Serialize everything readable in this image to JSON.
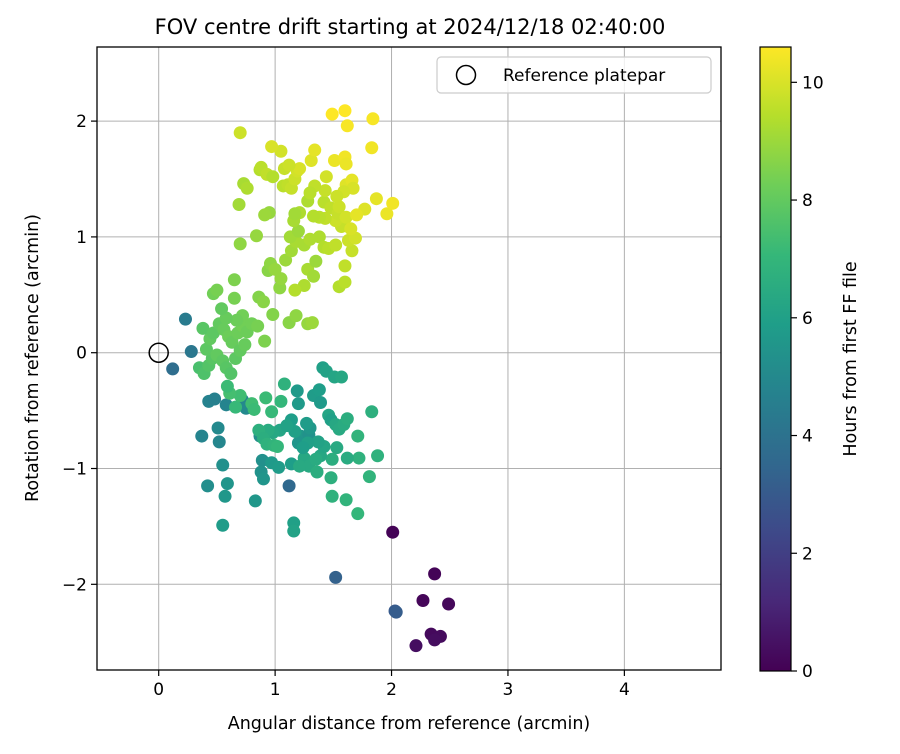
{
  "chart_data": {
    "type": "scatter",
    "title": "FOV centre drift starting at 2024/12/18 02:40:00",
    "xlabel": "Angular distance from reference (arcmin)",
    "ylabel": "Rotation from reference (arcmin)",
    "xlim": [
      -0.53,
      4.83
    ],
    "ylim": [
      -2.74,
      2.64
    ],
    "xticks": [
      0,
      1,
      2,
      3,
      4
    ],
    "yticks": [
      -2,
      -1,
      0,
      1,
      2
    ],
    "xtick_labels": [
      "0",
      "1",
      "2",
      "3",
      "4"
    ],
    "ytick_labels": [
      "−2",
      "−1",
      "0",
      "1",
      "2"
    ],
    "grid": true,
    "legend_placement": "top-right",
    "legend": [
      {
        "label": "Reference platepar",
        "marker": "open-circle"
      }
    ],
    "reference_point": {
      "x": 0,
      "y": 0,
      "label": "Reference platepar"
    },
    "colorbar": {
      "label": "Hours from first FF file",
      "range": [
        0,
        10.6
      ],
      "ticks": [
        0,
        2,
        4,
        6,
        8,
        10
      ],
      "tick_labels": [
        "0",
        "2",
        "4",
        "6",
        "8",
        "10"
      ],
      "colormap": "viridis"
    },
    "colormap_stops": [
      "#440154",
      "#482878",
      "#3e4989",
      "#31688e",
      "#26828e",
      "#1f9e89",
      "#35b779",
      "#6ece58",
      "#b5de2b",
      "#fde725"
    ],
    "series": [
      {
        "points": [
          [
            2.01,
            -1.55,
            0.05
          ],
          [
            2.37,
            -1.91,
            0.1
          ],
          [
            2.27,
            -2.14,
            0.15
          ],
          [
            2.49,
            -2.17,
            0.2
          ],
          [
            2.34,
            -2.43,
            0.25
          ],
          [
            2.42,
            -2.45,
            0.3
          ],
          [
            2.37,
            -2.48,
            0.35
          ],
          [
            2.21,
            -2.53,
            0.4
          ],
          [
            1.52,
            -1.94,
            3.3
          ],
          [
            2.03,
            -2.23,
            3.0
          ],
          [
            2.04,
            -2.24,
            3.1
          ],
          [
            1.12,
            -1.15,
            3.6
          ],
          [
            0.12,
            -0.14,
            3.8
          ],
          [
            0.23,
            0.29,
            4.4
          ],
          [
            0.28,
            0.01,
            4.2
          ],
          [
            0.37,
            -0.72,
            4.8
          ],
          [
            0.52,
            -0.77,
            4.9
          ],
          [
            0.51,
            -0.65,
            5.0
          ],
          [
            0.42,
            -1.15,
            5.2
          ],
          [
            0.55,
            -0.97,
            5.3
          ],
          [
            0.59,
            -1.13,
            5.5
          ],
          [
            0.57,
            -1.24,
            5.6
          ],
          [
            0.55,
            -1.49,
            5.8
          ],
          [
            0.43,
            -0.42,
            4.7
          ],
          [
            0.48,
            -0.4,
            4.6
          ],
          [
            0.58,
            -0.45,
            4.8
          ],
          [
            0.72,
            -0.41,
            4.9
          ],
          [
            0.75,
            -0.48,
            5.0
          ],
          [
            0.87,
            -0.72,
            5.2
          ],
          [
            0.89,
            -0.93,
            5.3
          ],
          [
            0.88,
            -1.03,
            5.4
          ],
          [
            0.9,
            -1.09,
            5.5
          ],
          [
            0.83,
            -1.28,
            5.6
          ],
          [
            0.97,
            -0.95,
            5.7
          ],
          [
            1.03,
            -0.99,
            5.8
          ],
          [
            1.14,
            -0.96,
            5.9
          ],
          [
            1.16,
            -1.47,
            6.0
          ],
          [
            1.16,
            -1.54,
            6.1
          ],
          [
            1.14,
            -0.58,
            5.9
          ],
          [
            1.2,
            -0.44,
            5.7
          ],
          [
            1.22,
            -0.72,
            5.6
          ],
          [
            1.2,
            -0.78,
            5.5
          ],
          [
            1.29,
            -0.71,
            5.4
          ],
          [
            1.3,
            -0.65,
            5.6
          ],
          [
            1.33,
            -0.37,
            5.8
          ],
          [
            1.38,
            -0.32,
            5.9
          ],
          [
            1.39,
            -0.43,
            5.7
          ],
          [
            1.41,
            -0.13,
            6.0
          ],
          [
            1.44,
            -0.16,
            6.1
          ],
          [
            1.51,
            -0.21,
            6.2
          ],
          [
            1.57,
            -0.21,
            6.3
          ],
          [
            1.46,
            -0.54,
            6.2
          ],
          [
            1.48,
            -0.58,
            6.0
          ],
          [
            1.52,
            -0.62,
            6.3
          ],
          [
            1.55,
            -0.66,
            6.4
          ],
          [
            1.59,
            -0.62,
            6.5
          ],
          [
            1.62,
            -0.57,
            6.6
          ],
          [
            1.53,
            -0.82,
            6.4
          ],
          [
            1.49,
            -0.92,
            6.6
          ],
          [
            1.48,
            -1.08,
            6.7
          ],
          [
            1.49,
            -1.24,
            6.8
          ],
          [
            1.61,
            -1.27,
            6.9
          ],
          [
            1.71,
            -1.39,
            7.0
          ],
          [
            1.72,
            -0.91,
            6.8
          ],
          [
            1.71,
            -0.72,
            6.9
          ],
          [
            1.83,
            -0.51,
            6.7
          ],
          [
            1.88,
            -0.89,
            6.8
          ],
          [
            1.81,
            -1.07,
            6.9
          ],
          [
            1.39,
            -0.89,
            6.3
          ],
          [
            1.42,
            -0.81,
            6.2
          ],
          [
            1.37,
            -0.77,
            6.1
          ],
          [
            1.28,
            -0.78,
            6.0
          ],
          [
            1.25,
            -0.91,
            6.3
          ],
          [
            1.29,
            -0.98,
            6.4
          ],
          [
            1.35,
            -0.92,
            6.5
          ],
          [
            1.36,
            -1.03,
            6.6
          ],
          [
            1.21,
            -0.98,
            6.4
          ],
          [
            1.04,
            -0.67,
            6.2
          ],
          [
            0.98,
            -0.69,
            6.3
          ],
          [
            0.94,
            -0.67,
            6.5
          ],
          [
            0.86,
            -0.67,
            6.7
          ],
          [
            0.9,
            -0.74,
            6.6
          ],
          [
            0.93,
            -0.79,
            6.8
          ],
          [
            0.99,
            -0.8,
            6.9
          ],
          [
            1.02,
            -0.81,
            7.0
          ],
          [
            0.97,
            -0.51,
            7.1
          ],
          [
            0.92,
            -0.39,
            7.2
          ],
          [
            1.05,
            -0.42,
            7.0
          ],
          [
            1.08,
            -0.27,
            6.8
          ],
          [
            0.8,
            -0.44,
            7.3
          ],
          [
            0.66,
            -0.47,
            7.1
          ],
          [
            0.82,
            -0.49,
            7.2
          ],
          [
            0.7,
            -0.37,
            7.3
          ],
          [
            0.61,
            -0.35,
            7.4
          ],
          [
            0.59,
            -0.29,
            7.2
          ],
          [
            1.17,
            -0.68,
            6.0
          ],
          [
            1.24,
            -0.82,
            5.9
          ],
          [
            1.27,
            -0.61,
            5.8
          ],
          [
            1.1,
            -0.63,
            6.1
          ],
          [
            1.19,
            -0.33,
            5.7
          ],
          [
            1.62,
            -0.91,
            6.5
          ],
          [
            0.35,
            -0.13,
            7.5
          ],
          [
            0.39,
            -0.18,
            7.6
          ],
          [
            0.43,
            -0.11,
            7.7
          ],
          [
            0.46,
            -0.05,
            7.8
          ],
          [
            0.41,
            0.03,
            7.9
          ],
          [
            0.44,
            0.12,
            8.0
          ],
          [
            0.38,
            0.21,
            7.8
          ],
          [
            0.47,
            0.17,
            7.9
          ],
          [
            0.52,
            0.25,
            8.0
          ],
          [
            0.56,
            0.2,
            8.1
          ],
          [
            0.6,
            0.14,
            8.2
          ],
          [
            0.63,
            0.09,
            8.1
          ],
          [
            0.5,
            -0.02,
            8.0
          ],
          [
            0.55,
            -0.07,
            7.9
          ],
          [
            0.58,
            -0.13,
            7.8
          ],
          [
            0.62,
            -0.18,
            7.7
          ],
          [
            0.66,
            -0.05,
            7.9
          ],
          [
            0.7,
            0.02,
            8.0
          ],
          [
            0.74,
            0.07,
            8.1
          ],
          [
            0.68,
            0.17,
            8.2
          ],
          [
            0.72,
            0.23,
            8.3
          ],
          [
            0.76,
            0.18,
            8.2
          ],
          [
            0.8,
            0.25,
            8.3
          ],
          [
            0.85,
            0.23,
            8.4
          ],
          [
            0.72,
            0.32,
            8.3
          ],
          [
            0.67,
            0.28,
            8.2
          ],
          [
            0.58,
            0.3,
            8.1
          ],
          [
            0.54,
            0.38,
            8.0
          ],
          [
            0.47,
            0.51,
            8.3
          ],
          [
            0.5,
            0.54,
            8.4
          ],
          [
            0.65,
            0.63,
            8.5
          ],
          [
            0.65,
            0.47,
            8.4
          ],
          [
            0.86,
            0.48,
            8.6
          ],
          [
            0.9,
            0.44,
            8.7
          ],
          [
            0.91,
            0.1,
            8.5
          ],
          [
            0.98,
            0.33,
            8.6
          ],
          [
            1.04,
            0.56,
            8.8
          ],
          [
            1.12,
            0.26,
            8.7
          ],
          [
            1.18,
            0.32,
            8.8
          ],
          [
            1.28,
            0.25,
            8.9
          ],
          [
            1.32,
            0.26,
            9.0
          ],
          [
            0.94,
            0.71,
            8.7
          ],
          [
            0.96,
            0.77,
            8.8
          ],
          [
            1.0,
            0.72,
            8.9
          ],
          [
            1.05,
            0.64,
            8.9
          ],
          [
            1.09,
            0.8,
            9.0
          ],
          [
            1.14,
            0.88,
            9.1
          ],
          [
            1.18,
            0.96,
            9.2
          ],
          [
            1.13,
            1.0,
            9.1
          ],
          [
            1.2,
            1.05,
            9.0
          ],
          [
            1.25,
            0.93,
            9.2
          ],
          [
            1.3,
            0.98,
            9.3
          ],
          [
            1.28,
            0.72,
            9.2
          ],
          [
            1.33,
            0.66,
            9.1
          ],
          [
            1.35,
            0.79,
            9.0
          ],
          [
            1.25,
            0.58,
            9.3
          ],
          [
            1.17,
            0.54,
            9.4
          ],
          [
            1.38,
            1.0,
            9.3
          ],
          [
            1.42,
            0.91,
            9.4
          ],
          [
            1.46,
            0.9,
            9.5
          ],
          [
            1.52,
            0.93,
            9.6
          ],
          [
            1.55,
            0.57,
            9.4
          ],
          [
            1.6,
            0.61,
            9.5
          ],
          [
            1.6,
            0.75,
            9.6
          ],
          [
            1.66,
            0.88,
            9.7
          ],
          [
            1.63,
            0.97,
            9.8
          ],
          [
            1.69,
            0.99,
            9.9
          ],
          [
            1.57,
            1.09,
            9.7
          ],
          [
            1.52,
            1.14,
            9.8
          ],
          [
            1.43,
            1.16,
            9.6
          ],
          [
            1.38,
            1.17,
            9.5
          ],
          [
            1.33,
            1.18,
            9.4
          ],
          [
            1.21,
            1.21,
            9.3
          ],
          [
            1.16,
            1.14,
            9.2
          ],
          [
            1.17,
            1.2,
            9.1
          ],
          [
            1.28,
            1.31,
            9.3
          ],
          [
            1.42,
            1.3,
            9.5
          ],
          [
            1.48,
            1.25,
            9.6
          ],
          [
            1.54,
            1.2,
            9.7
          ],
          [
            1.55,
            1.26,
            9.8
          ],
          [
            1.61,
            1.17,
            9.9
          ],
          [
            1.65,
            1.07,
            10.0
          ],
          [
            1.77,
            1.24,
            10.1
          ],
          [
            1.87,
            1.33,
            10.2
          ],
          [
            1.96,
            1.2,
            10.3
          ],
          [
            2.01,
            1.29,
            10.4
          ],
          [
            0.95,
            1.21,
            8.9
          ],
          [
            0.91,
            1.19,
            9.0
          ],
          [
            0.69,
            1.28,
            9.1
          ],
          [
            0.7,
            0.94,
            8.8
          ],
          [
            0.84,
            1.01,
            8.9
          ],
          [
            0.73,
            1.46,
            9.2
          ],
          [
            0.76,
            1.42,
            9.3
          ],
          [
            0.87,
            1.58,
            9.4
          ],
          [
            0.88,
            1.6,
            9.5
          ],
          [
            0.93,
            1.54,
            9.6
          ],
          [
            0.98,
            1.52,
            9.4
          ],
          [
            1.07,
            1.44,
            9.5
          ],
          [
            1.08,
            1.59,
            9.7
          ],
          [
            1.11,
            1.45,
            9.6
          ],
          [
            1.14,
            1.42,
            9.7
          ],
          [
            1.17,
            1.5,
            9.8
          ],
          [
            1.19,
            1.57,
            9.9
          ],
          [
            1.21,
            1.59,
            10.0
          ],
          [
            1.12,
            1.62,
            9.8
          ],
          [
            1.05,
            1.74,
            9.9
          ],
          [
            0.97,
            1.78,
            10.0
          ],
          [
            1.31,
            1.66,
            10.1
          ],
          [
            1.34,
            1.75,
            10.2
          ],
          [
            1.51,
            1.66,
            10.3
          ],
          [
            1.6,
            1.69,
            10.4
          ],
          [
            1.61,
            1.63,
            10.3
          ],
          [
            1.61,
            1.45,
            10.1
          ],
          [
            1.66,
            1.49,
            10.2
          ],
          [
            1.67,
            1.42,
            10.0
          ],
          [
            1.59,
            1.39,
            9.9
          ],
          [
            1.53,
            1.35,
            9.8
          ],
          [
            1.43,
            1.4,
            9.7
          ],
          [
            1.44,
            1.52,
            9.9
          ],
          [
            1.34,
            1.44,
            9.6
          ],
          [
            1.3,
            1.38,
            9.5
          ],
          [
            1.7,
            1.19,
            10.2
          ],
          [
            1.83,
            1.77,
            10.4
          ],
          [
            1.84,
            2.02,
            10.5
          ],
          [
            1.49,
            2.06,
            10.6
          ],
          [
            1.6,
            2.09,
            10.6
          ],
          [
            1.62,
            1.96,
            10.5
          ],
          [
            0.7,
            1.9,
            9.8
          ]
        ]
      }
    ]
  }
}
